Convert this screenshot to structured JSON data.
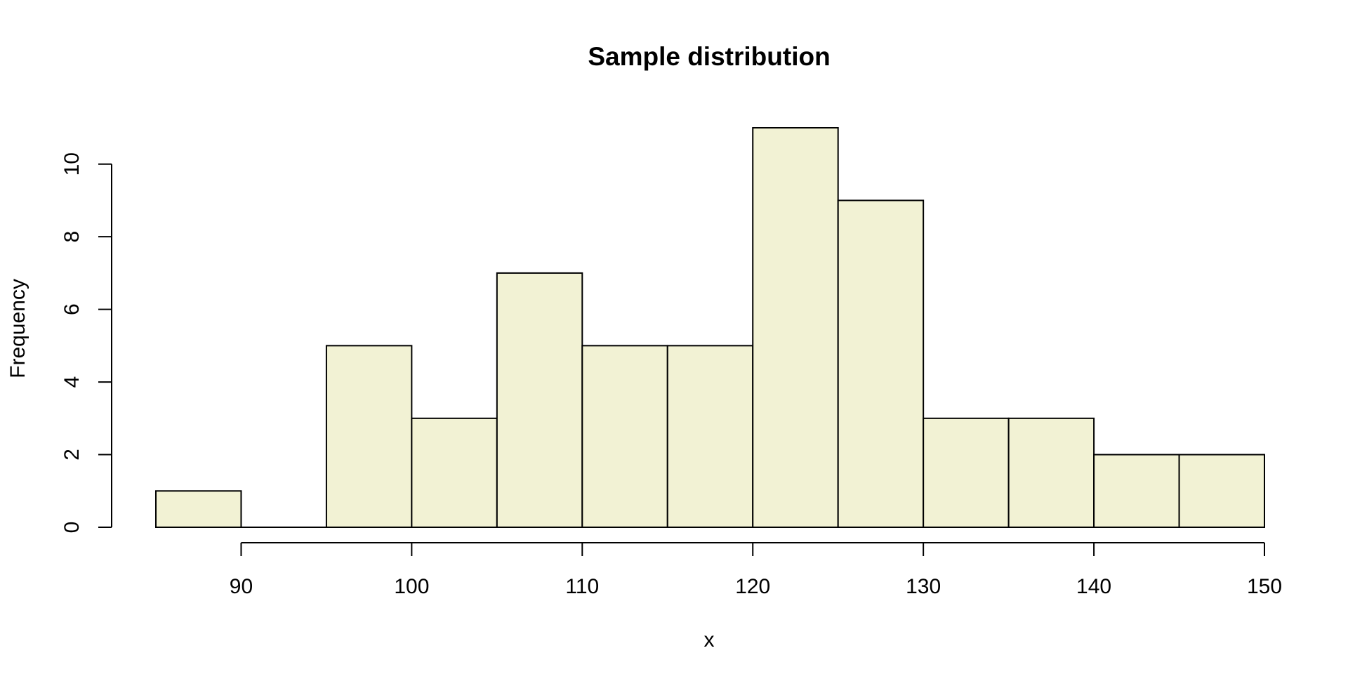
{
  "chart_data": {
    "type": "bar",
    "subtype": "histogram",
    "title": "Sample distribution",
    "xlabel": "x",
    "ylabel": "Frequency",
    "bin_edges": [
      85,
      90,
      95,
      100,
      105,
      110,
      115,
      120,
      125,
      130,
      135,
      140,
      145,
      150
    ],
    "values": [
      1,
      0,
      5,
      3,
      7,
      5,
      5,
      11,
      9,
      3,
      3,
      2,
      2
    ],
    "xlim": [
      85,
      150
    ],
    "ylim": [
      0,
      11
    ],
    "x_ticks": [
      90,
      100,
      110,
      120,
      130,
      140,
      150
    ],
    "y_ticks": [
      0,
      2,
      4,
      6,
      8,
      10
    ],
    "bar_color": "#f2f2d4",
    "edge_color": "#000000",
    "grid": false,
    "legend": "none"
  }
}
